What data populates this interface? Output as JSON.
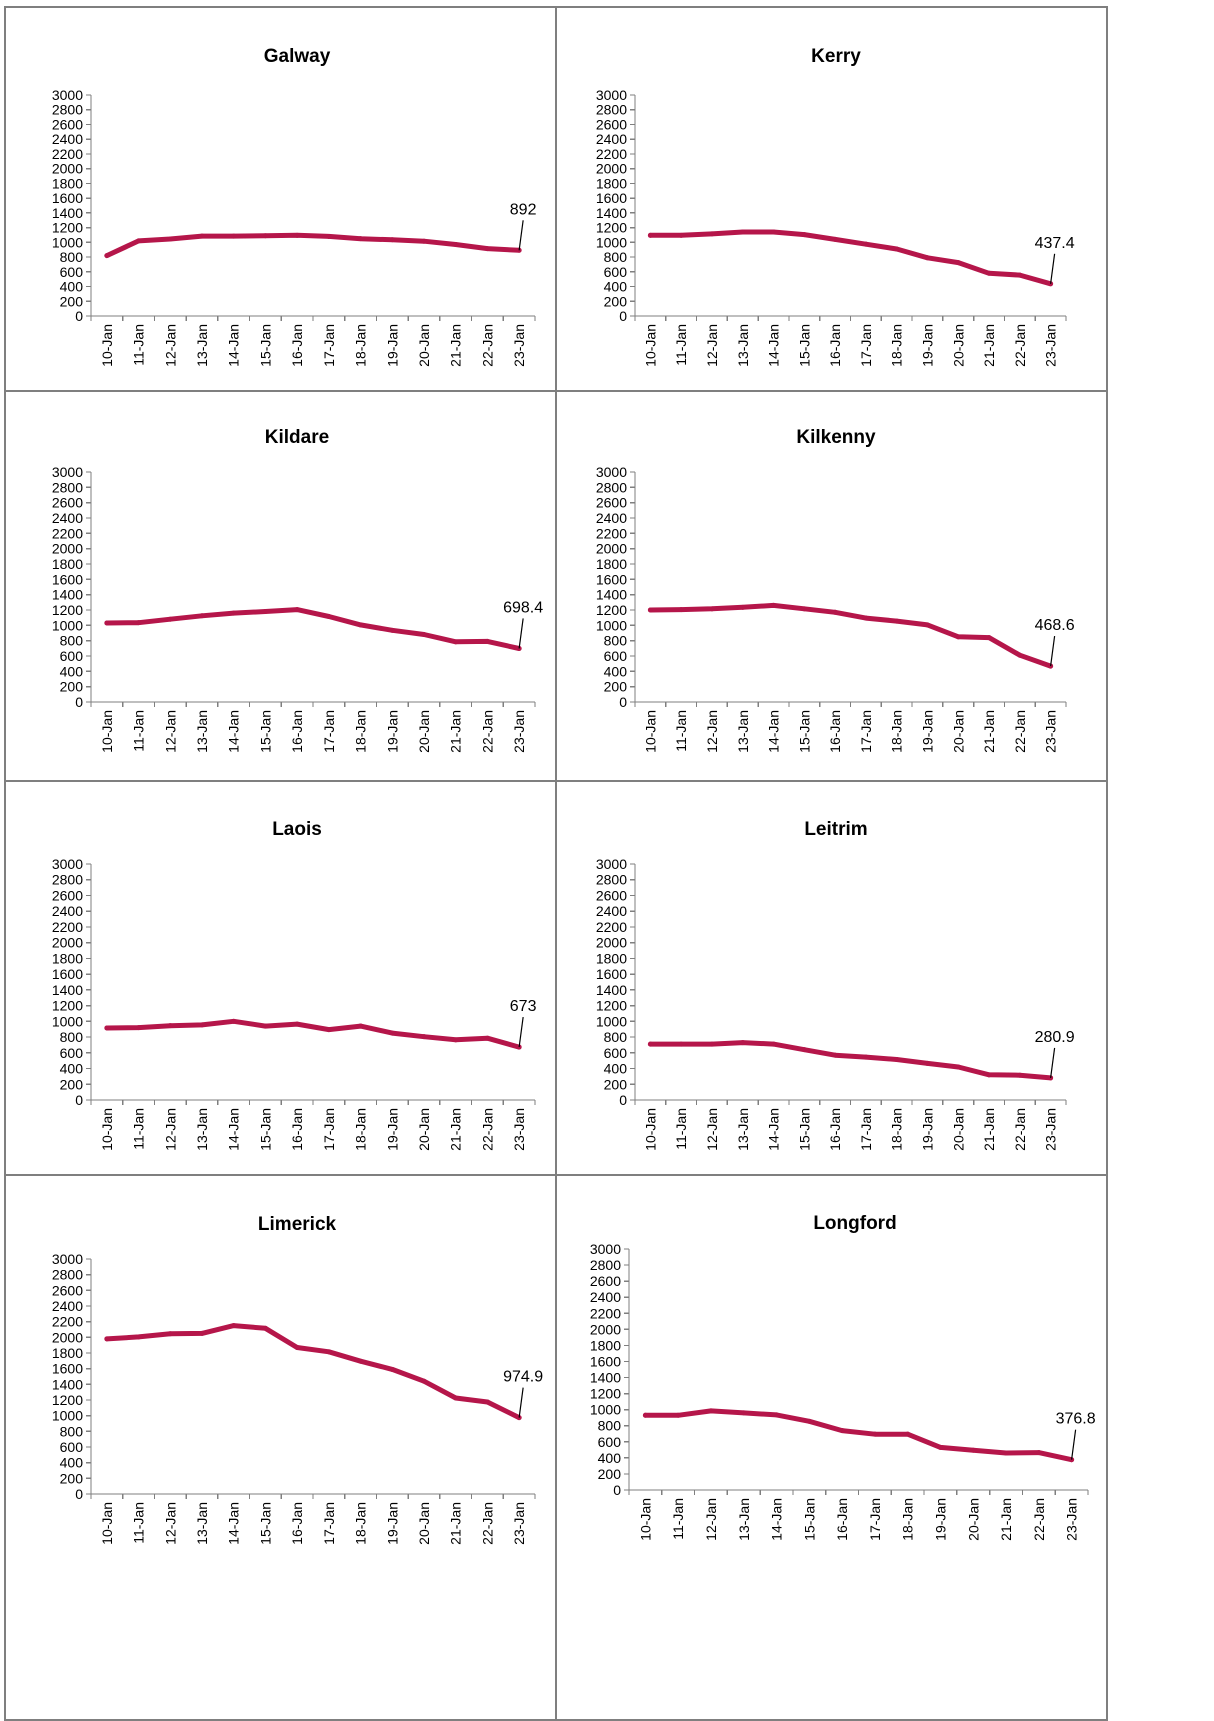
{
  "style": {
    "line_color": "#b5164a",
    "border_color": "#7f7f7f"
  },
  "chart_data": [
    {
      "type": "line",
      "title": "Galway",
      "categories": [
        "10-Jan",
        "11-Jan",
        "12-Jan",
        "13-Jan",
        "14-Jan",
        "15-Jan",
        "16-Jan",
        "17-Jan",
        "18-Jan",
        "19-Jan",
        "20-Jan",
        "21-Jan",
        "22-Jan",
        "23-Jan"
      ],
      "values": [
        820,
        1020,
        1045,
        1085,
        1085,
        1090,
        1095,
        1080,
        1050,
        1035,
        1015,
        970,
        915,
        892
      ],
      "ylim": [
        0,
        3000
      ],
      "yticks": [
        "0",
        "200",
        "400",
        "600",
        "800",
        "1000",
        "1200",
        "1400",
        "1600",
        "1800",
        "2000",
        "2200",
        "2400",
        "2600",
        "2800",
        "3000"
      ],
      "data_label": "892",
      "grid": false,
      "legend": "none"
    },
    {
      "type": "line",
      "title": "Kerry",
      "categories": [
        "10-Jan",
        "11-Jan",
        "12-Jan",
        "13-Jan",
        "14-Jan",
        "15-Jan",
        "16-Jan",
        "17-Jan",
        "18-Jan",
        "19-Jan",
        "20-Jan",
        "21-Jan",
        "22-Jan",
        "23-Jan"
      ],
      "values": [
        1095,
        1095,
        1115,
        1140,
        1140,
        1105,
        1040,
        975,
        910,
        790,
        725,
        580,
        555,
        437.4
      ],
      "ylim": [
        0,
        3000
      ],
      "yticks": [
        "0",
        "200",
        "400",
        "600",
        "800",
        "1000",
        "1200",
        "1400",
        "1600",
        "1800",
        "2000",
        "2200",
        "2400",
        "2600",
        "2800",
        "3000"
      ],
      "data_label": "437.4",
      "grid": false,
      "legend": "none"
    },
    {
      "type": "line",
      "title": "Kildare",
      "categories": [
        "10-Jan",
        "11-Jan",
        "12-Jan",
        "13-Jan",
        "14-Jan",
        "15-Jan",
        "16-Jan",
        "17-Jan",
        "18-Jan",
        "19-Jan",
        "20-Jan",
        "21-Jan",
        "22-Jan",
        "23-Jan"
      ],
      "values": [
        1030,
        1035,
        1080,
        1125,
        1160,
        1180,
        1205,
        1115,
        1005,
        935,
        880,
        785,
        790,
        698.4
      ],
      "ylim": [
        0,
        3000
      ],
      "yticks": [
        "0",
        "200",
        "400",
        "600",
        "800",
        "1000",
        "1200",
        "1400",
        "1600",
        "1800",
        "2000",
        "2200",
        "2400",
        "2600",
        "2800",
        "3000"
      ],
      "data_label": "698.4",
      "grid": false,
      "legend": "none"
    },
    {
      "type": "line",
      "title": "Kilkenny",
      "categories": [
        "10-Jan",
        "11-Jan",
        "12-Jan",
        "13-Jan",
        "14-Jan",
        "15-Jan",
        "16-Jan",
        "17-Jan",
        "18-Jan",
        "19-Jan",
        "20-Jan",
        "21-Jan",
        "22-Jan",
        "23-Jan"
      ],
      "values": [
        1200,
        1205,
        1215,
        1235,
        1260,
        1215,
        1170,
        1095,
        1055,
        1005,
        850,
        840,
        610,
        468.6
      ],
      "ylim": [
        0,
        3000
      ],
      "yticks": [
        "0",
        "200",
        "400",
        "600",
        "800",
        "1000",
        "1200",
        "1400",
        "1600",
        "1800",
        "2000",
        "2200",
        "2400",
        "2600",
        "2800",
        "3000"
      ],
      "data_label": "468.6",
      "grid": false,
      "legend": "none"
    },
    {
      "type": "line",
      "title": "Laois",
      "categories": [
        "10-Jan",
        "11-Jan",
        "12-Jan",
        "13-Jan",
        "14-Jan",
        "15-Jan",
        "16-Jan",
        "17-Jan",
        "18-Jan",
        "19-Jan",
        "20-Jan",
        "21-Jan",
        "22-Jan",
        "23-Jan"
      ],
      "values": [
        915,
        920,
        945,
        955,
        1000,
        940,
        965,
        895,
        940,
        850,
        805,
        765,
        785,
        673
      ],
      "ylim": [
        0,
        3000
      ],
      "yticks": [
        "0",
        "200",
        "400",
        "600",
        "800",
        "1000",
        "1200",
        "1400",
        "1600",
        "1800",
        "2000",
        "2200",
        "2400",
        "2600",
        "2800",
        "3000"
      ],
      "data_label": "673",
      "grid": false,
      "legend": "none"
    },
    {
      "type": "line",
      "title": "Leitrim",
      "categories": [
        "10-Jan",
        "11-Jan",
        "12-Jan",
        "13-Jan",
        "14-Jan",
        "15-Jan",
        "16-Jan",
        "17-Jan",
        "18-Jan",
        "19-Jan",
        "20-Jan",
        "21-Jan",
        "22-Jan",
        "23-Jan"
      ],
      "values": [
        710,
        710,
        710,
        730,
        710,
        640,
        570,
        545,
        515,
        465,
        420,
        320,
        315,
        280.9
      ],
      "ylim": [
        0,
        3000
      ],
      "yticks": [
        "0",
        "200",
        "400",
        "600",
        "800",
        "1000",
        "1200",
        "1400",
        "1600",
        "1800",
        "2000",
        "2200",
        "2400",
        "2600",
        "2800",
        "3000"
      ],
      "data_label": "280.9",
      "grid": false,
      "legend": "none"
    },
    {
      "type": "line",
      "title": "Limerick",
      "categories": [
        "10-Jan",
        "11-Jan",
        "12-Jan",
        "13-Jan",
        "14-Jan",
        "15-Jan",
        "16-Jan",
        "17-Jan",
        "18-Jan",
        "19-Jan",
        "20-Jan",
        "21-Jan",
        "22-Jan",
        "23-Jan"
      ],
      "values": [
        1980,
        2005,
        2045,
        2050,
        2150,
        2115,
        1870,
        1815,
        1695,
        1590,
        1440,
        1225,
        1175,
        974.9
      ],
      "ylim": [
        0,
        3000
      ],
      "yticks": [
        "0",
        "200",
        "400",
        "600",
        "800",
        "1000",
        "1200",
        "1400",
        "1600",
        "1800",
        "2000",
        "2200",
        "2400",
        "2600",
        "2800",
        "3000"
      ],
      "data_label": "974.9",
      "grid": false,
      "legend": "none"
    },
    {
      "type": "line",
      "title": "Longford",
      "categories": [
        "10-Jan",
        "11-Jan",
        "12-Jan",
        "13-Jan",
        "14-Jan",
        "15-Jan",
        "16-Jan",
        "17-Jan",
        "18-Jan",
        "19-Jan",
        "20-Jan",
        "21-Jan",
        "22-Jan",
        "23-Jan"
      ],
      "values": [
        930,
        930,
        985,
        960,
        935,
        855,
        740,
        695,
        695,
        530,
        495,
        460,
        465,
        376.8
      ],
      "ylim": [
        0,
        3000
      ],
      "yticks": [
        "0",
        "200",
        "400",
        "600",
        "800",
        "1000",
        "1200",
        "1400",
        "1600",
        "1800",
        "2000",
        "2200",
        "2400",
        "2600",
        "2800",
        "3000"
      ],
      "data_label": "376.8",
      "grid": false,
      "legend": "none"
    }
  ]
}
